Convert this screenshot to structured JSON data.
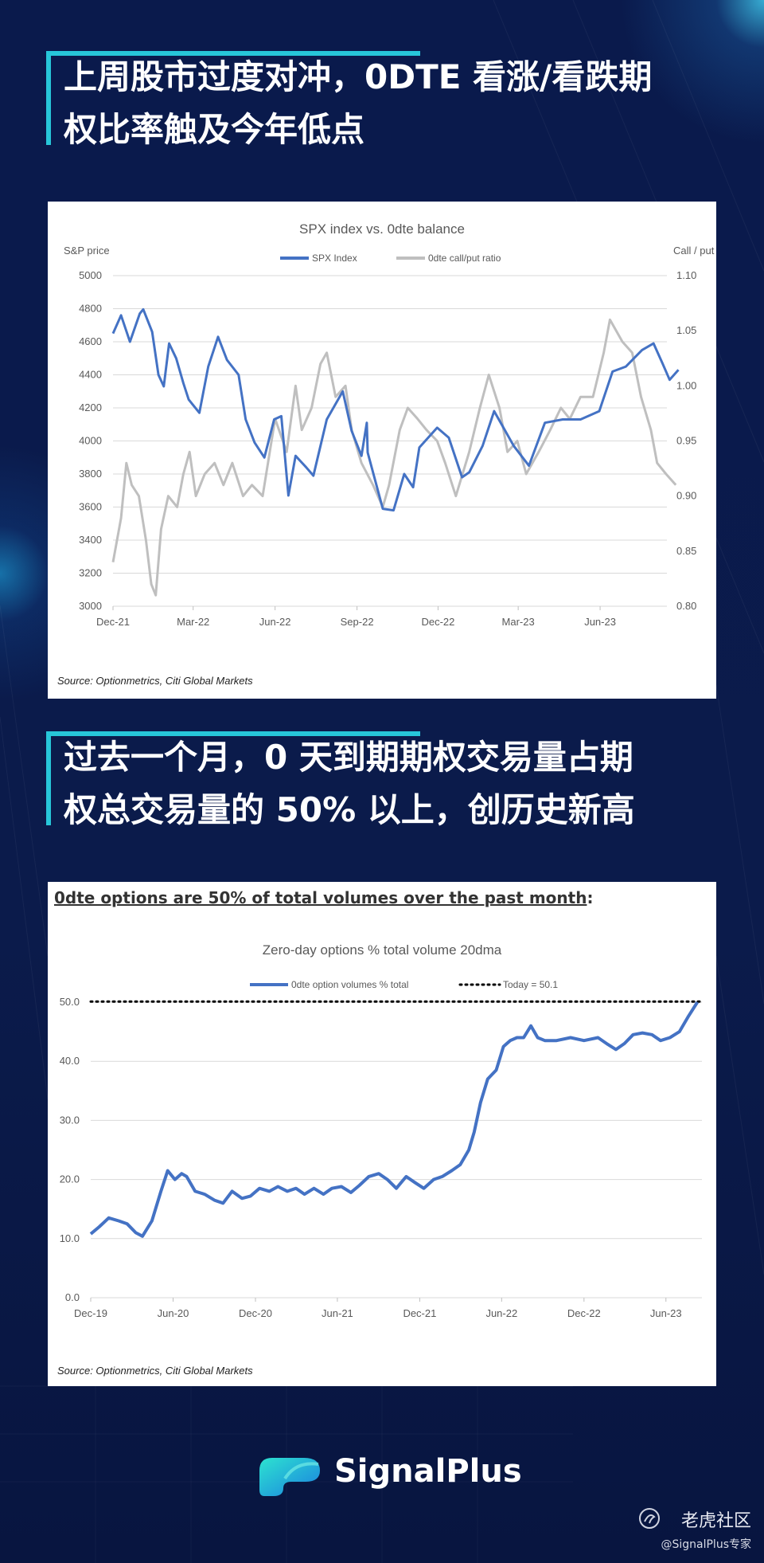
{
  "heading1": {
    "line1": "上周股市过度对冲，0DTE 看涨/看跌期",
    "line2": "权比率触及今年低点"
  },
  "heading2": {
    "line1": "过去一个月，0 天到期期权交易量占期",
    "line2": "权总交易量的 50% 以上，创历史新高"
  },
  "colors": {
    "background": "#0b1a4a",
    "accent": "#27c6d9",
    "spx": "#4472c4",
    "ratio": "#bfbfbf",
    "odte": "#4472c4"
  },
  "chart_data": [
    {
      "type": "line",
      "title": "SPX index vs. 0dte balance",
      "ylabel": "S&P price",
      "y2label": "Call / put",
      "ylim": [
        3000,
        5000
      ],
      "y2lim": [
        0.8,
        1.1
      ],
      "yticks": [
        "5000",
        "4800",
        "4600",
        "4400",
        "4200",
        "4000",
        "3800",
        "3600",
        "3400",
        "3200",
        "3000"
      ],
      "y2ticks": [
        "1.10",
        "1.05",
        "1.00",
        "0.95",
        "0.90",
        "0.85",
        "0.80"
      ],
      "xticks": [
        "Dec-21",
        "Mar-22",
        "Jun-22",
        "Sep-22",
        "Dec-22",
        "Mar-23",
        "Jun-23"
      ],
      "xlim": [
        "2021-12-01",
        "2023-08-15"
      ],
      "legend": "top-center",
      "grid": true,
      "source": "Source: Optionmetrics, Citi Global Markets",
      "series": [
        {
          "name": "SPX Index",
          "axis": "left",
          "points": [
            [
              "2021-12-01",
              4650
            ],
            [
              "2021-12-10",
              4760
            ],
            [
              "2021-12-20",
              4600
            ],
            [
              "2021-12-31",
              4770
            ],
            [
              "2022-01-04",
              4796
            ],
            [
              "2022-01-14",
              4660
            ],
            [
              "2022-01-21",
              4400
            ],
            [
              "2022-01-27",
              4330
            ],
            [
              "2022-02-02",
              4590
            ],
            [
              "2022-02-10",
              4500
            ],
            [
              "2022-02-18",
              4350
            ],
            [
              "2022-02-24",
              4250
            ],
            [
              "2022-03-08",
              4170
            ],
            [
              "2022-03-18",
              4450
            ],
            [
              "2022-03-29",
              4630
            ],
            [
              "2022-04-08",
              4490
            ],
            [
              "2022-04-21",
              4400
            ],
            [
              "2022-04-29",
              4130
            ],
            [
              "2022-05-09",
              3990
            ],
            [
              "2022-05-20",
              3900
            ],
            [
              "2022-05-31",
              4130
            ],
            [
              "2022-06-08",
              4150
            ],
            [
              "2022-06-16",
              3670
            ],
            [
              "2022-06-24",
              3910
            ],
            [
              "2022-07-06",
              3840
            ],
            [
              "2022-07-14",
              3790
            ],
            [
              "2022-07-29",
              4130
            ],
            [
              "2022-08-16",
              4300
            ],
            [
              "2022-08-26",
              4060
            ],
            [
              "2022-09-06",
              3910
            ],
            [
              "2022-09-12",
              4110
            ],
            [
              "2022-09-13",
              3930
            ],
            [
              "2022-09-30",
              3590
            ],
            [
              "2022-10-12",
              3580
            ],
            [
              "2022-10-24",
              3800
            ],
            [
              "2022-11-03",
              3720
            ],
            [
              "2022-11-10",
              3960
            ],
            [
              "2022-11-30",
              4080
            ],
            [
              "2022-12-13",
              4020
            ],
            [
              "2022-12-28",
              3780
            ],
            [
              "2023-01-05",
              3810
            ],
            [
              "2023-01-20",
              3970
            ],
            [
              "2023-02-02",
              4180
            ],
            [
              "2023-02-24",
              3970
            ],
            [
              "2023-03-13",
              3850
            ],
            [
              "2023-03-31",
              4110
            ],
            [
              "2023-04-20",
              4130
            ],
            [
              "2023-05-10",
              4130
            ],
            [
              "2023-05-31",
              4180
            ],
            [
              "2023-06-15",
              4420
            ],
            [
              "2023-06-30",
              4450
            ],
            [
              "2023-07-18",
              4550
            ],
            [
              "2023-07-31",
              4590
            ],
            [
              "2023-08-10",
              4470
            ],
            [
              "2023-08-18",
              4370
            ],
            [
              "2023-08-28",
              4430
            ]
          ]
        },
        {
          "name": "0dte call/put ratio",
          "axis": "right",
          "points": [
            [
              "2021-12-01",
              0.84
            ],
            [
              "2021-12-10",
              0.88
            ],
            [
              "2021-12-16",
              0.93
            ],
            [
              "2021-12-22",
              0.91
            ],
            [
              "2021-12-30",
              0.9
            ],
            [
              "2022-01-07",
              0.86
            ],
            [
              "2022-01-13",
              0.82
            ],
            [
              "2022-01-18",
              0.81
            ],
            [
              "2022-01-24",
              0.87
            ],
            [
              "2022-02-01",
              0.9
            ],
            [
              "2022-02-11",
              0.89
            ],
            [
              "2022-02-18",
              0.92
            ],
            [
              "2022-02-25",
              0.94
            ],
            [
              "2022-03-04",
              0.9
            ],
            [
              "2022-03-14",
              0.92
            ],
            [
              "2022-03-25",
              0.93
            ],
            [
              "2022-04-04",
              0.91
            ],
            [
              "2022-04-14",
              0.93
            ],
            [
              "2022-04-26",
              0.9
            ],
            [
              "2022-05-06",
              0.91
            ],
            [
              "2022-05-18",
              0.9
            ],
            [
              "2022-06-01",
              0.97
            ],
            [
              "2022-06-14",
              0.94
            ],
            [
              "2022-06-24",
              1.0
            ],
            [
              "2022-07-01",
              0.96
            ],
            [
              "2022-07-12",
              0.98
            ],
            [
              "2022-07-22",
              1.02
            ],
            [
              "2022-07-29",
              1.03
            ],
            [
              "2022-08-08",
              0.99
            ],
            [
              "2022-08-19",
              1.0
            ],
            [
              "2022-08-26",
              0.96
            ],
            [
              "2022-09-06",
              0.93
            ],
            [
              "2022-09-19",
              0.91
            ],
            [
              "2022-09-30",
              0.89
            ],
            [
              "2022-10-07",
              0.91
            ],
            [
              "2022-10-19",
              0.96
            ],
            [
              "2022-10-28",
              0.98
            ],
            [
              "2022-11-08",
              0.97
            ],
            [
              "2022-11-18",
              0.96
            ],
            [
              "2022-11-30",
              0.95
            ],
            [
              "2022-12-09",
              0.93
            ],
            [
              "2022-12-21",
              0.9
            ],
            [
              "2023-01-05",
              0.94
            ],
            [
              "2023-01-17",
              0.98
            ],
            [
              "2023-01-27",
              1.01
            ],
            [
              "2023-02-08",
              0.98
            ],
            [
              "2023-02-17",
              0.94
            ],
            [
              "2023-02-28",
              0.95
            ],
            [
              "2023-03-10",
              0.92
            ],
            [
              "2023-03-24",
              0.94
            ],
            [
              "2023-04-06",
              0.96
            ],
            [
              "2023-04-18",
              0.98
            ],
            [
              "2023-04-28",
              0.97
            ],
            [
              "2023-05-10",
              0.99
            ],
            [
              "2023-05-24",
              0.99
            ],
            [
              "2023-06-05",
              1.03
            ],
            [
              "2023-06-12",
              1.06
            ],
            [
              "2023-06-26",
              1.04
            ],
            [
              "2023-07-07",
              1.03
            ],
            [
              "2023-07-17",
              0.99
            ],
            [
              "2023-07-28",
              0.96
            ],
            [
              "2023-08-04",
              0.93
            ],
            [
              "2023-08-14",
              0.92
            ],
            [
              "2023-08-25",
              0.91
            ]
          ]
        }
      ]
    },
    {
      "type": "line",
      "heading": "0dte options are 50% of total volumes over the past month",
      "title": "Zero-day options % total volume 20dma",
      "ylim": [
        0,
        50
      ],
      "yticks": [
        "50.0",
        "40.0",
        "30.0",
        "20.0",
        "10.0",
        "0.0"
      ],
      "xticks": [
        "Dec-19",
        "Jun-20",
        "Dec-20",
        "Jun-21",
        "Dec-21",
        "Jun-22",
        "Dec-22",
        "Jun-23"
      ],
      "xlim": [
        "2019-12-01",
        "2023-08-20"
      ],
      "legend": "top-center",
      "grid": true,
      "source": "Source: Optionmetrics, Citi Global Markets",
      "series": [
        {
          "name": "0dte option volumes % total",
          "points": [
            [
              "2019-12-01",
              10.8
            ],
            [
              "2019-12-20",
              12.0
            ],
            [
              "2020-01-10",
              13.5
            ],
            [
              "2020-02-01",
              13.0
            ],
            [
              "2020-02-20",
              12.5
            ],
            [
              "2020-03-10",
              11.0
            ],
            [
              "2020-03-25",
              10.4
            ],
            [
              "2020-04-15",
              13.0
            ],
            [
              "2020-05-05",
              18.0
            ],
            [
              "2020-05-20",
              21.5
            ],
            [
              "2020-06-05",
              20.0
            ],
            [
              "2020-06-20",
              21.0
            ],
            [
              "2020-07-01",
              20.5
            ],
            [
              "2020-07-20",
              18.0
            ],
            [
              "2020-08-10",
              17.5
            ],
            [
              "2020-09-01",
              16.5
            ],
            [
              "2020-09-20",
              16.0
            ],
            [
              "2020-10-10",
              18.0
            ],
            [
              "2020-11-01",
              16.8
            ],
            [
              "2020-11-20",
              17.2
            ],
            [
              "2020-12-10",
              18.5
            ],
            [
              "2021-01-01",
              18.0
            ],
            [
              "2021-01-20",
              18.8
            ],
            [
              "2021-02-10",
              18.0
            ],
            [
              "2021-03-01",
              18.5
            ],
            [
              "2021-03-20",
              17.5
            ],
            [
              "2021-04-10",
              18.5
            ],
            [
              "2021-05-01",
              17.5
            ],
            [
              "2021-05-20",
              18.5
            ],
            [
              "2021-06-10",
              18.8
            ],
            [
              "2021-07-01",
              17.8
            ],
            [
              "2021-07-20",
              19.0
            ],
            [
              "2021-08-10",
              20.5
            ],
            [
              "2021-09-01",
              21.0
            ],
            [
              "2021-09-20",
              20.0
            ],
            [
              "2021-10-10",
              18.5
            ],
            [
              "2021-11-01",
              20.5
            ],
            [
              "2021-11-20",
              19.5
            ],
            [
              "2021-12-10",
              18.5
            ],
            [
              "2022-01-01",
              20.0
            ],
            [
              "2022-01-20",
              20.5
            ],
            [
              "2022-02-10",
              21.5
            ],
            [
              "2022-03-01",
              22.5
            ],
            [
              "2022-03-20",
              25.0
            ],
            [
              "2022-04-01",
              28.0
            ],
            [
              "2022-04-15",
              33.0
            ],
            [
              "2022-05-01",
              37.0
            ],
            [
              "2022-05-20",
              38.5
            ],
            [
              "2022-06-05",
              42.5
            ],
            [
              "2022-06-20",
              43.5
            ],
            [
              "2022-07-05",
              44.0
            ],
            [
              "2022-07-20",
              44.0
            ],
            [
              "2022-08-05",
              46.0
            ],
            [
              "2022-08-20",
              44.0
            ],
            [
              "2022-09-05",
              43.5
            ],
            [
              "2022-10-01",
              43.5
            ],
            [
              "2022-11-01",
              44.0
            ],
            [
              "2022-12-01",
              43.5
            ],
            [
              "2023-01-01",
              44.0
            ],
            [
              "2023-01-20",
              43.0
            ],
            [
              "2023-02-10",
              42.0
            ],
            [
              "2023-03-01",
              43.0
            ],
            [
              "2023-03-20",
              44.5
            ],
            [
              "2023-04-10",
              44.8
            ],
            [
              "2023-05-01",
              44.5
            ],
            [
              "2023-05-20",
              43.5
            ],
            [
              "2023-06-10",
              44.0
            ],
            [
              "2023-07-01",
              45.0
            ],
            [
              "2023-07-20",
              47.5
            ],
            [
              "2023-08-10",
              50.0
            ]
          ]
        },
        {
          "name": "Today = 50.1",
          "constant": 50.1,
          "style": "dotted"
        }
      ]
    }
  ],
  "brand": {
    "name": "SignalPlus",
    "watermark1": "老虎社区",
    "watermark2": "@SignalPlus专家"
  }
}
